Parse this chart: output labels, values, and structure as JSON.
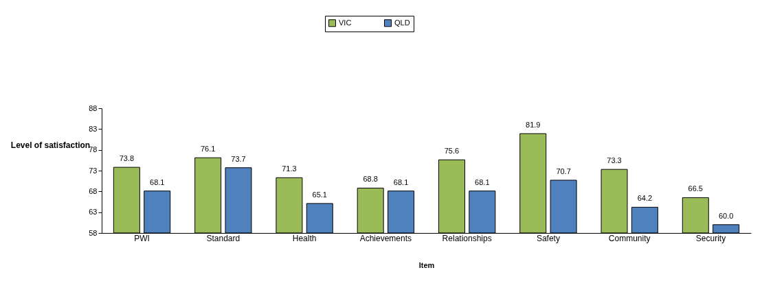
{
  "chart_data": {
    "type": "bar",
    "xlabel": "Item",
    "ylabel": "Level of satisfaction",
    "categories": [
      "PWI",
      "Standard",
      "Health",
      "Achievements",
      "Relationships",
      "Safety",
      "Community",
      "Security"
    ],
    "series": [
      {
        "name": "VIC",
        "color": "#9bbb59",
        "values": [
          73.8,
          76.1,
          71.3,
          68.8,
          75.6,
          81.9,
          73.3,
          66.5
        ],
        "value_labels": [
          "73.8",
          "76.1",
          "71.3",
          "68.8",
          "75.6",
          "81.9",
          "73.3",
          "66.5"
        ]
      },
      {
        "name": "QLD",
        "color": "#4f81bd",
        "values": [
          68.1,
          73.7,
          65.1,
          68.1,
          68.1,
          70.7,
          64.2,
          60.0
        ],
        "value_labels": [
          "68.1",
          "73.7",
          "65.1",
          "68.1",
          "68.1",
          "70.7",
          "64.2",
          "60.0"
        ]
      }
    ],
    "ylim": [
      58,
      88
    ],
    "yticks": [
      58,
      63,
      68,
      73,
      78,
      83,
      88
    ],
    "grid": false,
    "legend": "top"
  }
}
